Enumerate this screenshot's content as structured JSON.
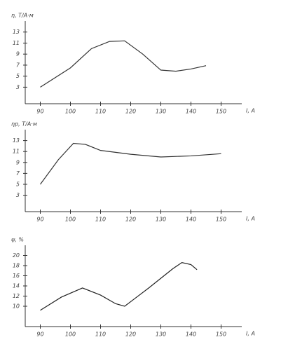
{
  "chart_data": [
    {
      "type": "line",
      "y_label": "η, Т/А·м",
      "x_label": "I, A",
      "x": [
        90,
        100,
        107,
        113,
        118,
        124,
        130,
        135,
        140,
        145
      ],
      "series": [
        {
          "color": "#333333",
          "values": [
            3,
            6.5,
            10,
            11.3,
            11.4,
            9,
            6.1,
            5.9,
            6.3,
            6.9
          ]
        }
      ],
      "xlim": [
        85,
        155
      ],
      "xticks": [
        90,
        100,
        110,
        120,
        130,
        140,
        150
      ],
      "ylim": [
        0,
        15
      ],
      "yticks": [
        3,
        5,
        7,
        9,
        11,
        13
      ]
    },
    {
      "type": "line",
      "y_label": "ηp, Т/А·м",
      "x_label": "I, A",
      "x": [
        90,
        96,
        101,
        105,
        110,
        120,
        130,
        140,
        150
      ],
      "series": [
        {
          "color": "#333333",
          "values": [
            5,
            9.5,
            12.5,
            12.3,
            11.2,
            10.5,
            10,
            10.2,
            10.6
          ]
        }
      ],
      "xlim": [
        85,
        155
      ],
      "xticks": [
        90,
        100,
        110,
        120,
        130,
        140,
        150
      ],
      "ylim": [
        0,
        15
      ],
      "yticks": [
        3,
        5,
        7,
        9,
        11,
        13
      ]
    },
    {
      "type": "line",
      "y_label": "ψ, %",
      "x_label": "I, A",
      "x": [
        90,
        97,
        104,
        110,
        115,
        118,
        122,
        126,
        130,
        134,
        137,
        140,
        142
      ],
      "series": [
        {
          "color": "#222222",
          "values": [
            9.2,
            11.8,
            13.6,
            12.2,
            10.5,
            10,
            11.8,
            13.6,
            15.5,
            17.4,
            18.6,
            18.2,
            17.2
          ]
        }
      ],
      "xlim": [
        85,
        155
      ],
      "xticks": [
        90,
        100,
        110,
        120,
        130,
        140,
        150
      ],
      "ylim": [
        6,
        22
      ],
      "yticks": [
        10,
        12,
        14,
        16,
        18,
        20
      ]
    }
  ]
}
